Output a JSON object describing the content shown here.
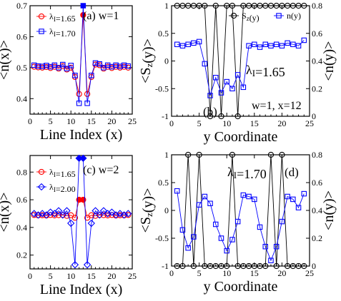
{
  "chart_data": [
    {
      "id": "a",
      "type": "scatter",
      "xlabel": "Line Index (x)",
      "ylabel": "<n(x)>",
      "xlim": [
        0,
        25
      ],
      "ylim": [
        0.35,
        0.7
      ],
      "xticks": [
        0,
        5,
        10,
        15,
        20,
        25
      ],
      "yticks": [
        0.4,
        0.5,
        0.6,
        0.7
      ],
      "yticklabels": [
        "0.4",
        "0.5",
        "0.6",
        "0.7"
      ],
      "annotation": "(a) w=1",
      "legend_position": "top-left",
      "series": [
        {
          "name": "λ_I=1.65",
          "color": "#ff0000",
          "marker": "circle",
          "line": true,
          "x": [
            1,
            2,
            3,
            4,
            5,
            6,
            7,
            8,
            9,
            10,
            11,
            12,
            13,
            14,
            15,
            16,
            17,
            18,
            19,
            20,
            21,
            22,
            23,
            24
          ],
          "y": [
            0.503,
            0.501,
            0.5,
            0.502,
            0.499,
            0.503,
            0.497,
            0.505,
            0.494,
            0.5,
            0.47,
            0.415,
            0.67,
            0.415,
            0.47,
            0.51,
            0.508,
            0.497,
            0.503,
            0.499,
            0.503,
            0.5,
            0.503,
            0.5
          ],
          "filled_x": [
            13
          ]
        },
        {
          "name": "λ_I=1.70",
          "color": "#0000ff",
          "marker": "square",
          "line": true,
          "x": [
            1,
            2,
            3,
            4,
            5,
            6,
            7,
            8,
            9,
            10,
            11,
            12,
            13,
            14,
            15,
            16,
            17,
            18,
            19,
            20,
            21,
            22,
            23,
            24
          ],
          "y": [
            0.508,
            0.505,
            0.504,
            0.507,
            0.503,
            0.508,
            0.5,
            0.51,
            0.497,
            0.507,
            0.475,
            0.385,
            0.7,
            0.385,
            0.475,
            0.515,
            0.512,
            0.5,
            0.508,
            0.503,
            0.508,
            0.504,
            0.508,
            0.505
          ],
          "filled_x": [
            13
          ]
        }
      ]
    },
    {
      "id": "b",
      "type": "line",
      "xlabel": "y Coordinate",
      "ylabel": "<S_z(y)>",
      "ylabel_right": "<n(y)>",
      "xlim": [
        0,
        25
      ],
      "ylim": [
        -1,
        1
      ],
      "ylim_right": [
        0,
        0.8
      ],
      "xticks": [
        0,
        5,
        10,
        15,
        20,
        25
      ],
      "yticks": [
        -1,
        -0.5,
        0,
        0.5,
        1
      ],
      "yticklabels": [
        "-1",
        "-0.5",
        "0",
        "0.5",
        "1"
      ],
      "yticks_right": [
        0,
        0.2,
        0.4,
        0.6,
        0.8
      ],
      "yticklabels_right": [
        "0",
        "0.2",
        "0.4",
        "0.6",
        "0.8"
      ],
      "annotation_lambda": "λ_I=1.65",
      "annotation_panel": "(b)",
      "annotation_extra": "w=1, x=12",
      "legend_position": "top-right",
      "series": [
        {
          "name": "S_z(y)",
          "color": "#000000",
          "marker": "circle",
          "axis": "left",
          "x": [
            1,
            2,
            3,
            4,
            5,
            6,
            7,
            8,
            9,
            10,
            11,
            12,
            13,
            14,
            15,
            16,
            17,
            18,
            19,
            20,
            21,
            22,
            23,
            24
          ],
          "y": [
            1,
            1,
            1,
            1,
            1,
            1,
            -1,
            1,
            -1,
            1,
            1,
            -1,
            1,
            1,
            1,
            1,
            1,
            1,
            1,
            1,
            1,
            1,
            1,
            1
          ]
        },
        {
          "name": "n(y)",
          "color": "#0000ff",
          "marker": "square",
          "axis": "right",
          "x": [
            1,
            2,
            3,
            4,
            5,
            6,
            7,
            8,
            9,
            10,
            11,
            12,
            13,
            14,
            15,
            16,
            17,
            18,
            19,
            20,
            21,
            22,
            23,
            24
          ],
          "y": [
            0.52,
            0.51,
            0.52,
            0.53,
            0.54,
            0.38,
            0.15,
            0.28,
            0.17,
            0.25,
            0.2,
            0.3,
            0.21,
            0.51,
            0.52,
            0.5,
            0.52,
            0.51,
            0.52,
            0.51,
            0.53,
            0.52,
            0.51,
            0.55
          ]
        }
      ]
    },
    {
      "id": "c",
      "type": "scatter",
      "xlabel": "Line Index (x)",
      "ylabel": "<n(x)>",
      "xlim": [
        0,
        25
      ],
      "ylim": [
        0.1,
        0.92
      ],
      "xticks": [
        0,
        5,
        10,
        15,
        20,
        25
      ],
      "yticks": [
        0.2,
        0.4,
        0.6,
        0.8
      ],
      "yticklabels": [
        "0.2",
        "0.4",
        "0.6",
        "0.8"
      ],
      "annotation": "(c) w=2",
      "legend_position": "top-left",
      "series": [
        {
          "name": "λ_I=1.65",
          "color": "#ff0000",
          "marker": "circle",
          "line": true,
          "x": [
            1,
            2,
            3,
            4,
            5,
            6,
            7,
            8,
            9,
            10,
            11,
            12,
            13,
            14,
            15,
            16,
            17,
            18,
            19,
            20,
            21,
            22,
            23,
            24
          ],
          "y": [
            0.49,
            0.487,
            0.488,
            0.486,
            0.49,
            0.487,
            0.489,
            0.49,
            0.484,
            0.488,
            0.47,
            0.6,
            0.6,
            0.47,
            0.488,
            0.484,
            0.49,
            0.489,
            0.487,
            0.49,
            0.486,
            0.488,
            0.487,
            0.49
          ],
          "filled_x": [
            12,
            13
          ]
        },
        {
          "name": "λ_I=2.00",
          "color": "#0000ff",
          "marker": "diamond",
          "line": true,
          "x": [
            1,
            2,
            3,
            4,
            5,
            6,
            7,
            8,
            9,
            10,
            11,
            12,
            13,
            14,
            15,
            16,
            17,
            18,
            19,
            20,
            21,
            22,
            23,
            24
          ],
          "y": [
            0.5,
            0.49,
            0.5,
            0.49,
            0.51,
            0.5,
            0.52,
            0.49,
            0.52,
            0.43,
            0.13,
            0.9,
            0.9,
            0.13,
            0.43,
            0.52,
            0.49,
            0.52,
            0.5,
            0.51,
            0.49,
            0.5,
            0.49,
            0.5
          ],
          "filled_x": [
            12,
            13
          ]
        }
      ]
    },
    {
      "id": "d",
      "type": "line",
      "xlabel": "y Coordinate",
      "ylabel": "<S_z(y)>",
      "ylabel_right": "<n(y)>",
      "xlim": [
        0,
        25
      ],
      "ylim": [
        -1,
        1
      ],
      "ylim_right": [
        0,
        0.8
      ],
      "xticks": [
        0,
        5,
        10,
        15,
        20,
        25
      ],
      "yticks": [
        -1,
        -0.5,
        0,
        0.5,
        1
      ],
      "yticklabels": [
        "-1",
        "-0.5",
        "0",
        "0.5",
        "1"
      ],
      "yticks_right": [
        0,
        0.2,
        0.4,
        0.6,
        0.8
      ],
      "yticklabels_right": [
        "0",
        "0.2",
        "0.4",
        "0.6",
        "0.8"
      ],
      "annotation_lambda": "λ_I=1.70",
      "annotation_panel": "(d)",
      "series": [
        {
          "name": "S_z(y)",
          "color": "#000000",
          "marker": "circle",
          "axis": "left",
          "x": [
            1,
            2,
            3,
            4,
            5,
            6,
            7,
            8,
            9,
            10,
            11,
            12,
            13,
            14,
            15,
            16,
            17,
            18,
            19,
            20,
            21,
            22,
            23,
            24
          ],
          "y": [
            -1,
            -1,
            1,
            -1,
            1,
            -1,
            -1,
            -1,
            -1,
            -1,
            1,
            -1,
            -1,
            -1,
            -1,
            -1,
            -1,
            1,
            -1,
            1,
            -1,
            -1,
            -1,
            -1
          ]
        },
        {
          "name": "n(y)",
          "color": "#0000ff",
          "marker": "square",
          "axis": "right",
          "x": [
            1,
            2,
            3,
            4,
            5,
            6,
            7,
            8,
            9,
            10,
            11,
            12,
            13,
            14,
            15,
            16,
            17,
            18,
            19,
            20,
            21,
            22,
            23,
            24
          ],
          "y": [
            0.54,
            0.26,
            0.13,
            0.21,
            0.44,
            0.5,
            0.45,
            0.3,
            0.2,
            0.11,
            0.19,
            0.32,
            0.51,
            0.5,
            0.48,
            0.28,
            0.14,
            0.04,
            0.14,
            0.32,
            0.5,
            0.48,
            0.42,
            0.52
          ]
        }
      ]
    }
  ]
}
